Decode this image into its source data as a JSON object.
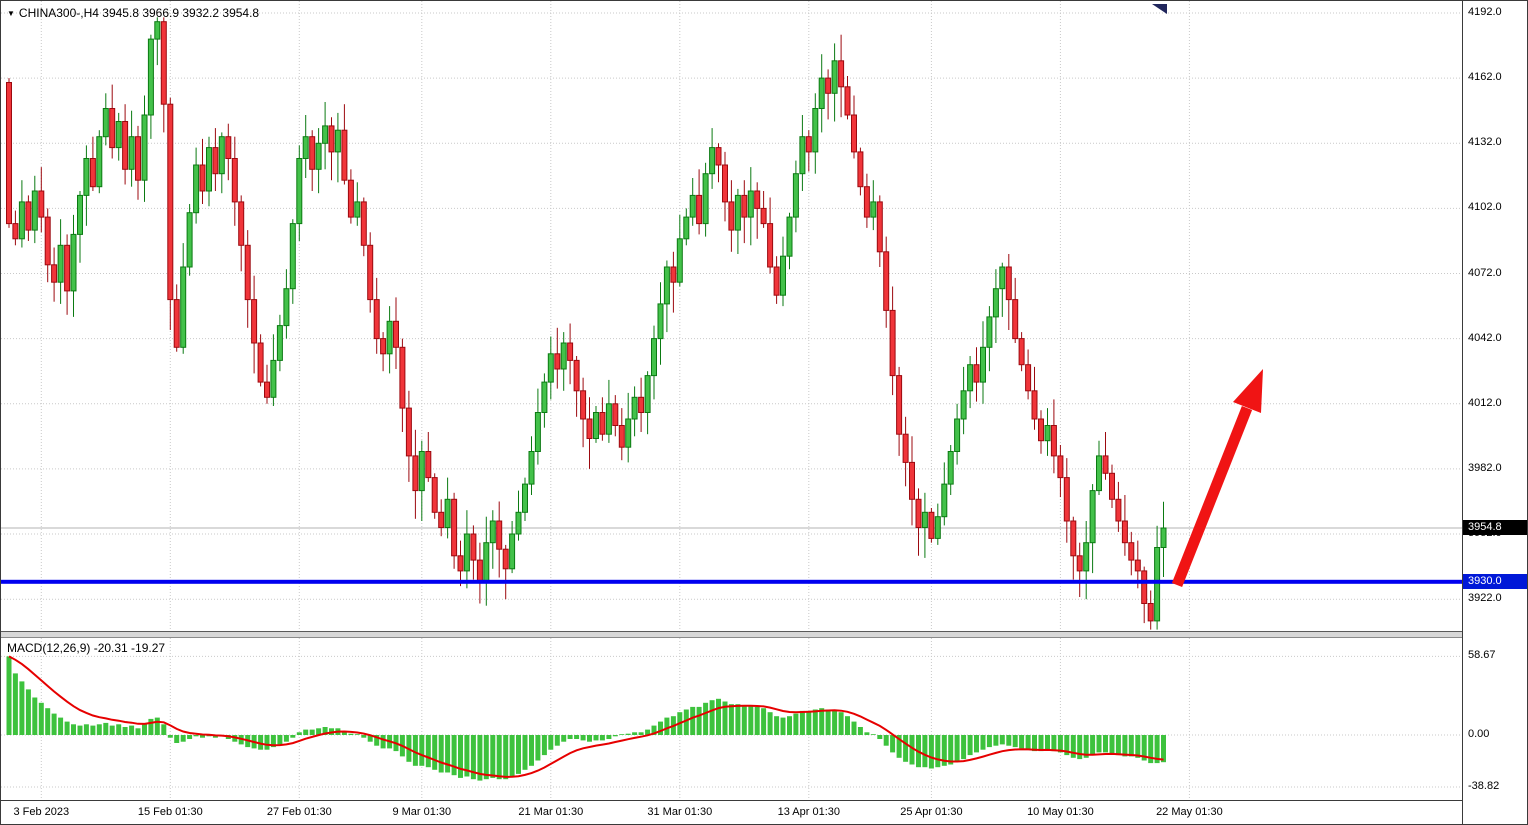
{
  "header": {
    "symbol_info": "CHINA300-,H4  3945.8 3966.9 3932.2 3954.8"
  },
  "price_axis": {
    "current_price_tag": "3954.8",
    "support_price_tag": "3930.0"
  },
  "macd": {
    "label": "MACD(12,26,9) -20.31 -19.27"
  },
  "colors": {
    "up_fill": "#43c14a",
    "up_stroke": "#0b7a12",
    "down_fill": "#f0353a",
    "down_stroke": "#9c090f",
    "grid": "#c9c9c9",
    "support_line": "#0000f0",
    "signal_line": "#e60000",
    "hist": "#3dc23d",
    "arrow": "#f01414",
    "tag_black_bg": "#000000",
    "tag_blue_bg": "#0018d8",
    "current_price_line": "#b3b3b3",
    "marker_navy": "#20265c"
  },
  "chart_data": {
    "type": "candlestick",
    "symbol": "CHINA300-",
    "timeframe": "H4",
    "title": "CHINA300-,H4",
    "quote": {
      "open": 3945.8,
      "high": 3966.9,
      "low": 3932.2,
      "close": 3954.8
    },
    "y_axis": {
      "min": 3903,
      "max": 4192,
      "ticks": [
        4192,
        4162,
        4132,
        4102,
        4072,
        4042,
        4012,
        3982,
        3952,
        3922
      ]
    },
    "x_labels": [
      {
        "i": 5,
        "t": "3 Feb 2023"
      },
      {
        "i": 25,
        "t": "15 Feb 01:30"
      },
      {
        "i": 45,
        "t": "27 Feb 01:30"
      },
      {
        "i": 64,
        "t": "9 Mar 01:30"
      },
      {
        "i": 84,
        "t": "21 Mar 01:30"
      },
      {
        "i": 104,
        "t": "31 Mar 01:30"
      },
      {
        "i": 124,
        "t": "13 Apr 01:30"
      },
      {
        "i": 143,
        "t": "25 Apr 01:30"
      },
      {
        "i": 163,
        "t": "10 May 01:30"
      },
      {
        "i": 183,
        "t": "22 May 01:30"
      }
    ],
    "first_open": 4160,
    "closes": [
      4095,
      4088,
      4105,
      4092,
      4110,
      4098,
      4076,
      4068,
      4085,
      4064,
      4090,
      4108,
      4125,
      4112,
      4135,
      4148,
      4130,
      4142,
      4120,
      4135,
      4115,
      4145,
      4180,
      4188,
      4150,
      4060,
      4038,
      4075,
      4100,
      4122,
      4110,
      4130,
      4118,
      4135,
      4125,
      4105,
      4085,
      4060,
      4040,
      4022,
      4015,
      4032,
      4048,
      4065,
      4095,
      4125,
      4135,
      4120,
      4132,
      4140,
      4128,
      4138,
      4115,
      4098,
      4105,
      4085,
      4060,
      4042,
      4035,
      4050,
      4038,
      4010,
      3988,
      3972,
      3990,
      3978,
      3962,
      3955,
      3968,
      3942,
      3935,
      3952,
      3940,
      3930,
      3948,
      3958,
      3945,
      3936,
      3952,
      3962,
      3975,
      3990,
      4008,
      4022,
      4035,
      4028,
      4040,
      4032,
      4018,
      4005,
      3996,
      4008,
      3998,
      4012,
      4002,
      3992,
      4005,
      4015,
      4008,
      4025,
      4042,
      4058,
      4075,
      4068,
      4088,
      4098,
      4108,
      4095,
      4118,
      4130,
      4122,
      4105,
      4092,
      4108,
      4098,
      4110,
      4102,
      4095,
      4075,
      4062,
      4080,
      4098,
      4118,
      4135,
      4128,
      4148,
      4162,
      4155,
      4170,
      4158,
      4145,
      4128,
      4112,
      4098,
      4105,
      4082,
      4055,
      4025,
      3998,
      3985,
      3968,
      3955,
      3962,
      3950,
      3960,
      3975,
      3990,
      4005,
      4018,
      4030,
      4022,
      4038,
      4052,
      4065,
      4075,
      4060,
      4042,
      4030,
      4018,
      4005,
      3995,
      4002,
      3988,
      3978,
      3958,
      3942,
      3935,
      3948,
      3972,
      3988,
      3980,
      3968,
      3958,
      3948,
      3940,
      3935,
      3920,
      3912,
      3945.8,
      3954.8
    ],
    "last_candle": {
      "open": 3945.8,
      "high": 3966.9,
      "low": 3932.2,
      "close": 3954.8
    },
    "support_line": 3930.0,
    "current_price": 3954.8,
    "annotation": {
      "type": "arrow-up-right",
      "color": "#f01414"
    },
    "macd": {
      "params": "12,26,9",
      "macd_last": -20.31,
      "signal_last": -19.27,
      "ticks": [
        58.67,
        0,
        -38.82
      ],
      "values": [
        58.67,
        46,
        40,
        34,
        28,
        24,
        20,
        16,
        13,
        10,
        8,
        7,
        8,
        7,
        8,
        9,
        7,
        8,
        6,
        7,
        5,
        8,
        12,
        13,
        8,
        -2,
        -6,
        -5,
        -3,
        -1,
        -2,
        -1,
        -2,
        -1,
        -3,
        -5,
        -7,
        -9,
        -10,
        -11,
        -11,
        -9,
        -7,
        -5,
        -2,
        2,
        4,
        4,
        5,
        6,
        5,
        5,
        3,
        1,
        0,
        -2,
        -5,
        -8,
        -10,
        -10,
        -12,
        -16,
        -20,
        -23,
        -23,
        -24,
        -26,
        -28,
        -28,
        -30,
        -32,
        -31,
        -33,
        -34,
        -33,
        -32,
        -33,
        -33,
        -31,
        -29,
        -26,
        -23,
        -19,
        -15,
        -11,
        -8,
        -5,
        -3,
        -3,
        -4,
        -5,
        -4,
        -4,
        -3,
        -1,
        0,
        1,
        2,
        2,
        4,
        7,
        10,
        13,
        14,
        17,
        19,
        21,
        21,
        24,
        26,
        27,
        25,
        23,
        23,
        22,
        22,
        21,
        20,
        17,
        14,
        13,
        14,
        16,
        18,
        18,
        19,
        20,
        19,
        19,
        17,
        14,
        10,
        6,
        2,
        0,
        -3,
        -8,
        -13,
        -17,
        -20,
        -22,
        -24,
        -24,
        -25,
        -24,
        -23,
        -22,
        -20,
        -18,
        -15,
        -13,
        -11,
        -9,
        -8,
        -7,
        -8,
        -9,
        -10,
        -11,
        -12,
        -12,
        -11,
        -12,
        -13,
        -15,
        -17,
        -18,
        -17,
        -15,
        -13,
        -13,
        -14,
        -15,
        -16,
        -16,
        -17,
        -19,
        -21,
        -21,
        -20.31
      ]
    }
  }
}
